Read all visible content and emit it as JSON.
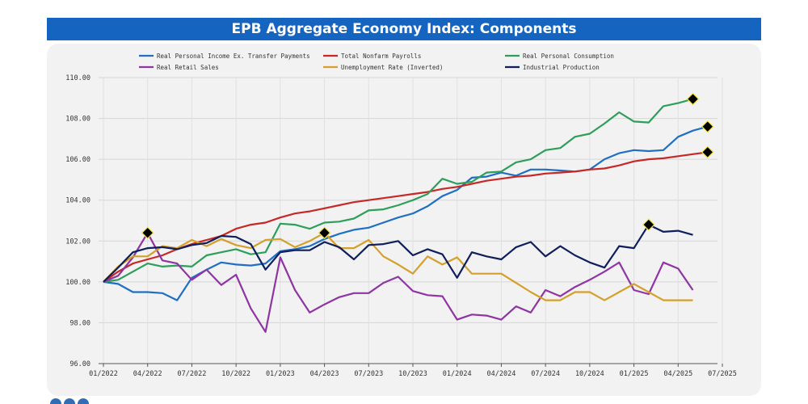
{
  "chart_data": {
    "type": "line",
    "title": "EPB Aggregate Economy Index: Components",
    "xlabel": "",
    "ylabel": "",
    "ylim": [
      96,
      110
    ],
    "yticks": [
      "96.00",
      "98.00",
      "100.00",
      "102.00",
      "104.00",
      "106.00",
      "108.00",
      "110.00"
    ],
    "xticks": [
      "01/2022",
      "04/2022",
      "07/2022",
      "10/2022",
      "01/2023",
      "04/2023",
      "07/2023",
      "10/2023",
      "01/2024",
      "04/2024",
      "07/2024",
      "10/2024",
      "01/2025",
      "04/2025",
      "07/2025"
    ],
    "x_count_months": 43,
    "grid": true,
    "legend_position": "top",
    "series": [
      {
        "name": "Real Personal Income Ex. Transfer Payments",
        "color": "#1f6fc5",
        "values": [
          100.0,
          99.9,
          99.5,
          99.5,
          99.45,
          99.1,
          100.2,
          100.6,
          100.95,
          100.85,
          100.8,
          100.9,
          101.5,
          101.6,
          101.75,
          102.1,
          102.35,
          102.55,
          102.65,
          102.9,
          103.15,
          103.35,
          103.7,
          104.2,
          104.5,
          105.1,
          105.15,
          105.35,
          105.2,
          105.5,
          105.5,
          105.45,
          105.4,
          105.5,
          106.0,
          106.3,
          106.45,
          106.4,
          106.45,
          107.1,
          107.4,
          107.6
        ]
      },
      {
        "name": "Total Nonfarm Payrolls",
        "color": "#c62828",
        "values": [
          100.0,
          100.5,
          100.9,
          101.1,
          101.3,
          101.6,
          101.85,
          102.05,
          102.25,
          102.6,
          102.8,
          102.9,
          103.15,
          103.35,
          103.45,
          103.6,
          103.75,
          103.9,
          104.0,
          104.1,
          104.2,
          104.3,
          104.4,
          104.55,
          104.65,
          104.8,
          104.95,
          105.05,
          105.15,
          105.2,
          105.3,
          105.35,
          105.4,
          105.5,
          105.55,
          105.7,
          105.9,
          106.0,
          106.05,
          106.15,
          106.25,
          106.35
        ]
      },
      {
        "name": "Real Personal Consumption",
        "color": "#2e9e5b",
        "values": [
          100.0,
          100.1,
          100.5,
          100.9,
          100.75,
          100.8,
          100.75,
          101.3,
          101.45,
          101.6,
          101.35,
          101.45,
          102.85,
          102.8,
          102.6,
          102.9,
          102.95,
          103.1,
          103.5,
          103.55,
          103.75,
          104.0,
          104.3,
          105.05,
          104.8,
          104.9,
          105.35,
          105.4,
          105.85,
          106.0,
          106.45,
          106.55,
          107.1,
          107.25,
          107.75,
          108.3,
          107.85,
          107.8,
          108.6,
          108.75,
          108.95
        ]
      },
      {
        "name": "Real Retail Sales",
        "color": "#8e35a3",
        "values": [
          100.0,
          100.3,
          101.2,
          102.4,
          101.05,
          100.9,
          100.1,
          100.6,
          99.85,
          100.35,
          98.7,
          97.55,
          101.2,
          99.6,
          98.5,
          98.9,
          99.25,
          99.45,
          99.45,
          99.95,
          100.25,
          99.55,
          99.35,
          99.3,
          98.15,
          98.4,
          98.35,
          98.15,
          98.8,
          98.5,
          99.6,
          99.3,
          99.75,
          100.1,
          100.5,
          100.95,
          99.6,
          99.4,
          100.95,
          100.65,
          99.6
        ]
      },
      {
        "name": "Unemployment Rate (Inverted)",
        "color": "#d4a02a",
        "values": [
          100.0,
          100.75,
          101.25,
          101.25,
          101.75,
          101.65,
          102.05,
          101.75,
          102.1,
          101.8,
          101.65,
          102.05,
          102.1,
          101.7,
          102.0,
          102.4,
          101.65,
          101.65,
          102.05,
          101.25,
          100.85,
          100.4,
          101.25,
          100.85,
          101.2,
          100.4,
          100.4,
          100.4,
          99.95,
          99.5,
          99.1,
          99.1,
          99.5,
          99.5,
          99.1,
          99.5,
          99.9,
          99.5,
          99.1,
          99.1,
          99.1
        ]
      },
      {
        "name": "Industrial Production",
        "color": "#0f1f5c",
        "values": [
          100.0,
          100.7,
          101.45,
          101.65,
          101.7,
          101.6,
          101.8,
          101.9,
          102.25,
          102.2,
          101.85,
          100.6,
          101.45,
          101.55,
          101.55,
          101.95,
          101.7,
          101.1,
          101.8,
          101.85,
          102.0,
          101.3,
          101.6,
          101.35,
          100.2,
          101.45,
          101.25,
          101.1,
          101.7,
          101.95,
          101.25,
          101.75,
          101.3,
          100.95,
          100.7,
          101.75,
          101.65,
          102.8,
          102.45,
          102.5,
          102.3
        ]
      }
    ],
    "annotations": [
      {
        "series": "Real Retail Sales",
        "month_index": 3,
        "value": 102.4,
        "marker": "diamond"
      },
      {
        "series": "Unemployment Rate (Inverted)",
        "month_index": 15,
        "value": 102.4,
        "marker": "diamond"
      },
      {
        "series": "Industrial Production",
        "month_index": 37,
        "value": 102.8,
        "marker": "diamond"
      },
      {
        "series": "Real Personal Consumption",
        "month_index": 40,
        "value": 108.95,
        "marker": "diamond"
      },
      {
        "series": "Real Personal Income Ex. Transfer Payments",
        "month_index": 41,
        "value": 107.6,
        "marker": "diamond"
      },
      {
        "series": "Total Nonfarm Payrolls",
        "month_index": 41,
        "value": 106.35,
        "marker": "diamond"
      }
    ]
  }
}
